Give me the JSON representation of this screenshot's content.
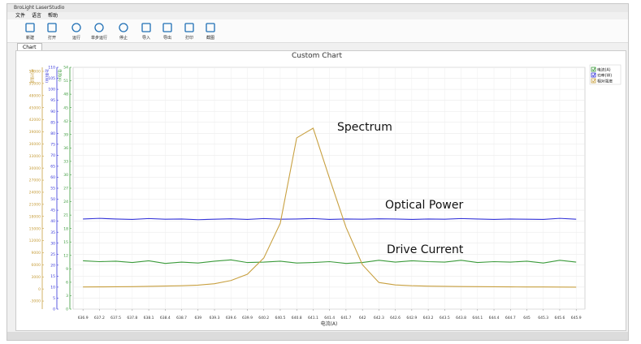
{
  "window_title": "BroLight LaserStudio",
  "menu": [
    "文件",
    "语言",
    "帮助"
  ],
  "toolbar": [
    "新建",
    "打开",
    "运行",
    "单步运行",
    "停止",
    "导入",
    "导出",
    "打印",
    "截图"
  ],
  "tab": "Chart",
  "chart_data": {
    "type": "line",
    "title": "Custom Chart",
    "annotations": [
      "Spectrum",
      "Optical Power",
      "Drive Current"
    ],
    "xlabel": "电流(A)",
    "ylabel": "相对强度",
    "y2label": "功率(W)",
    "y3label": "电流(A)",
    "x": [
      636.9,
      637.2,
      637.5,
      637.8,
      638.1,
      638.4,
      638.7,
      639,
      639.3,
      639.6,
      639.9,
      640.2,
      640.5,
      640.8,
      641.1,
      641.4,
      641.7,
      642,
      642.3,
      642.6,
      642.9,
      643.2,
      643.5,
      643.8,
      644.1,
      644.4,
      644.7,
      645,
      645.3,
      645.6,
      645.9
    ],
    "xlim": [
      636.72,
      646.06
    ],
    "xticks": [
      636.9,
      637.2,
      637.5,
      637.8,
      638.1,
      638.4,
      638.7,
      639,
      639.3,
      639.6,
      639.9,
      640.2,
      640.5,
      640.8,
      641.1,
      641.4,
      641.7,
      642,
      642.3,
      642.6,
      642.9,
      643.2,
      643.5,
      643.8,
      644.1,
      644.4,
      644.7,
      645,
      645.3,
      645.6,
      645.9
    ],
    "ylim": [
      -5000,
      55000
    ],
    "yticks": [
      -3000,
      0,
      3000,
      6000,
      9000,
      12000,
      15000,
      18000,
      21000,
      24000,
      27000,
      30000,
      33000,
      36000,
      39000,
      42000,
      45000,
      48000,
      51000,
      54000
    ],
    "y2lim": [
      0,
      110
    ],
    "y2ticks": [
      0,
      5,
      10,
      15,
      20,
      25,
      30,
      35,
      40,
      45,
      50,
      55,
      60,
      65,
      70,
      75,
      80,
      85,
      90,
      95,
      100,
      105,
      110
    ],
    "y3lim": [
      0,
      54
    ],
    "y3ticks": [
      0,
      3,
      6,
      9,
      12,
      15,
      18,
      21,
      24,
      27,
      30,
      33,
      36,
      39,
      42,
      45,
      48,
      51,
      54
    ],
    "grid": true,
    "legend": "top-right",
    "series": [
      {
        "name": "电流(A)",
        "color": "#3a9a3a",
        "axis": "y3",
        "values": [
          10.8,
          10.6,
          10.7,
          10.4,
          10.8,
          10.2,
          10.5,
          10.3,
          10.7,
          11.0,
          10.4,
          10.5,
          10.7,
          10.3,
          10.4,
          10.6,
          10.2,
          10.4,
          10.9,
          10.5,
          10.8,
          10.6,
          10.5,
          10.9,
          10.4,
          10.6,
          10.5,
          10.7,
          10.3,
          10.9,
          10.5
        ]
      },
      {
        "name": "功率(W)",
        "color": "#3333d8",
        "axis": "y2",
        "values": [
          41.0,
          41.3,
          41.0,
          40.8,
          41.2,
          40.9,
          41.0,
          40.7,
          40.9,
          41.1,
          40.8,
          41.2,
          40.9,
          41.0,
          41.2,
          40.8,
          41.0,
          40.9,
          41.1,
          41.0,
          40.8,
          41.0,
          40.9,
          41.2,
          41.0,
          40.8,
          41.0,
          40.9,
          40.8,
          41.3,
          40.9
        ]
      },
      {
        "name": "相对强度",
        "color": "#c8a040",
        "axis": "y",
        "values": [
          500,
          520,
          540,
          580,
          650,
          720,
          800,
          950,
          1300,
          2100,
          3650,
          7700,
          16300,
          37500,
          39900,
          27400,
          15300,
          6000,
          1600,
          1000,
          800,
          700,
          650,
          600,
          570,
          540,
          520,
          500,
          490,
          470,
          450
        ]
      }
    ]
  }
}
